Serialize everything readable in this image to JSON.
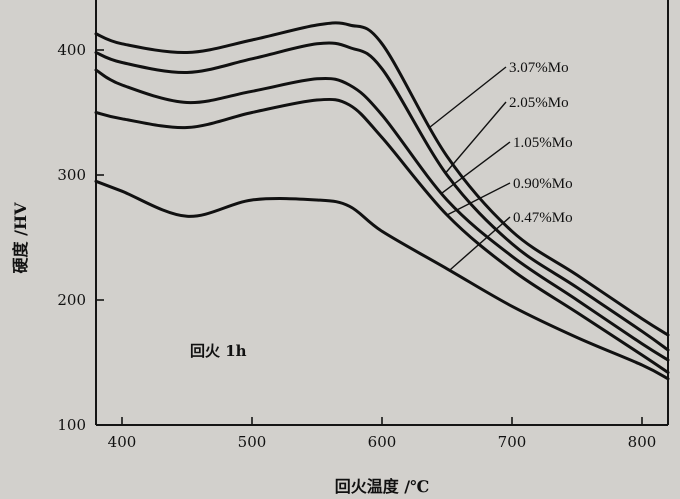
{
  "chart_data": {
    "type": "line",
    "xlabel": "回火温度 /℃",
    "ylabel": "硬度 /HV",
    "annotation": "回火 1h",
    "xlim": [
      380,
      820
    ],
    "ylim": [
      100,
      440
    ],
    "xticks": [
      400,
      500,
      600,
      700,
      800
    ],
    "yticks": [
      100,
      200,
      300,
      400
    ],
    "grid": false,
    "legend": "labels with leader lines, upper right",
    "series": [
      {
        "name": "3.07%Mo",
        "x": [
          380,
          400,
          450,
          500,
          550,
          575,
          600,
          650,
          700,
          750,
          800,
          820
        ],
        "y": [
          413,
          405,
          398,
          408,
          420,
          420,
          405,
          315,
          255,
          220,
          185,
          172
        ]
      },
      {
        "name": "2.05%Mo",
        "x": [
          380,
          400,
          450,
          500,
          550,
          575,
          600,
          650,
          700,
          750,
          800,
          820
        ],
        "y": [
          398,
          390,
          382,
          393,
          405,
          402,
          385,
          300,
          245,
          210,
          175,
          160
        ]
      },
      {
        "name": "1.05%Mo",
        "x": [
          380,
          400,
          450,
          500,
          550,
          575,
          600,
          650,
          700,
          750,
          800,
          820
        ],
        "y": [
          384,
          372,
          358,
          367,
          377,
          372,
          348,
          280,
          235,
          200,
          165,
          152
        ]
      },
      {
        "name": "0.90%Mo",
        "x": [
          380,
          400,
          450,
          500,
          550,
          575,
          600,
          650,
          700,
          750,
          800,
          820
        ],
        "y": [
          350,
          345,
          338,
          350,
          360,
          356,
          330,
          268,
          224,
          190,
          156,
          142
        ]
      },
      {
        "name": "0.47%Mo",
        "x": [
          380,
          400,
          450,
          500,
          550,
          575,
          600,
          650,
          700,
          750,
          800,
          820
        ],
        "y": [
          295,
          287,
          267,
          280,
          280,
          275,
          255,
          225,
          195,
          170,
          148,
          137
        ]
      }
    ]
  }
}
